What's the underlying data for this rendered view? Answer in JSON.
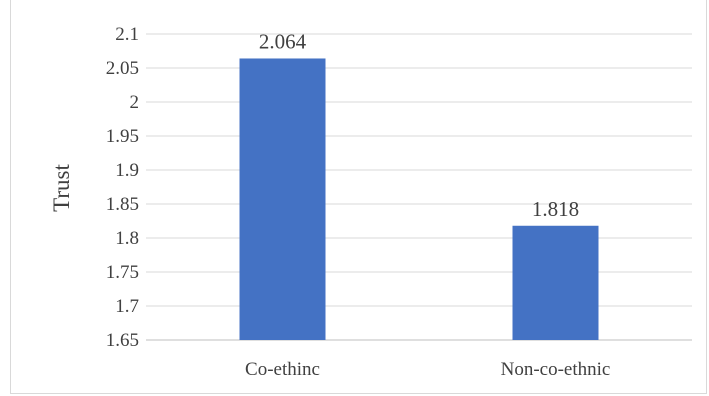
{
  "chart_data": {
    "type": "bar",
    "categories": [
      "Co-ethinc",
      "Non-co-ethnic"
    ],
    "values": [
      2.064,
      1.818
    ],
    "value_labels": [
      "2.064",
      "1.818"
    ],
    "title": "",
    "xlabel": "",
    "ylabel": "Trust",
    "ylim": [
      1.65,
      2.1
    ],
    "yticks": [
      1.65,
      1.7,
      1.75,
      1.8,
      1.85,
      1.9,
      1.95,
      2,
      2.05,
      2.1
    ],
    "ytick_labels": [
      "1.65",
      "1.7",
      "1.75",
      "1.8",
      "1.85",
      "1.9",
      "1.95",
      "2",
      "2.05",
      "2.1"
    ],
    "grid": true,
    "legend": "none",
    "bar_color": "#4472C4",
    "grid_color": "#d9d9d9"
  }
}
